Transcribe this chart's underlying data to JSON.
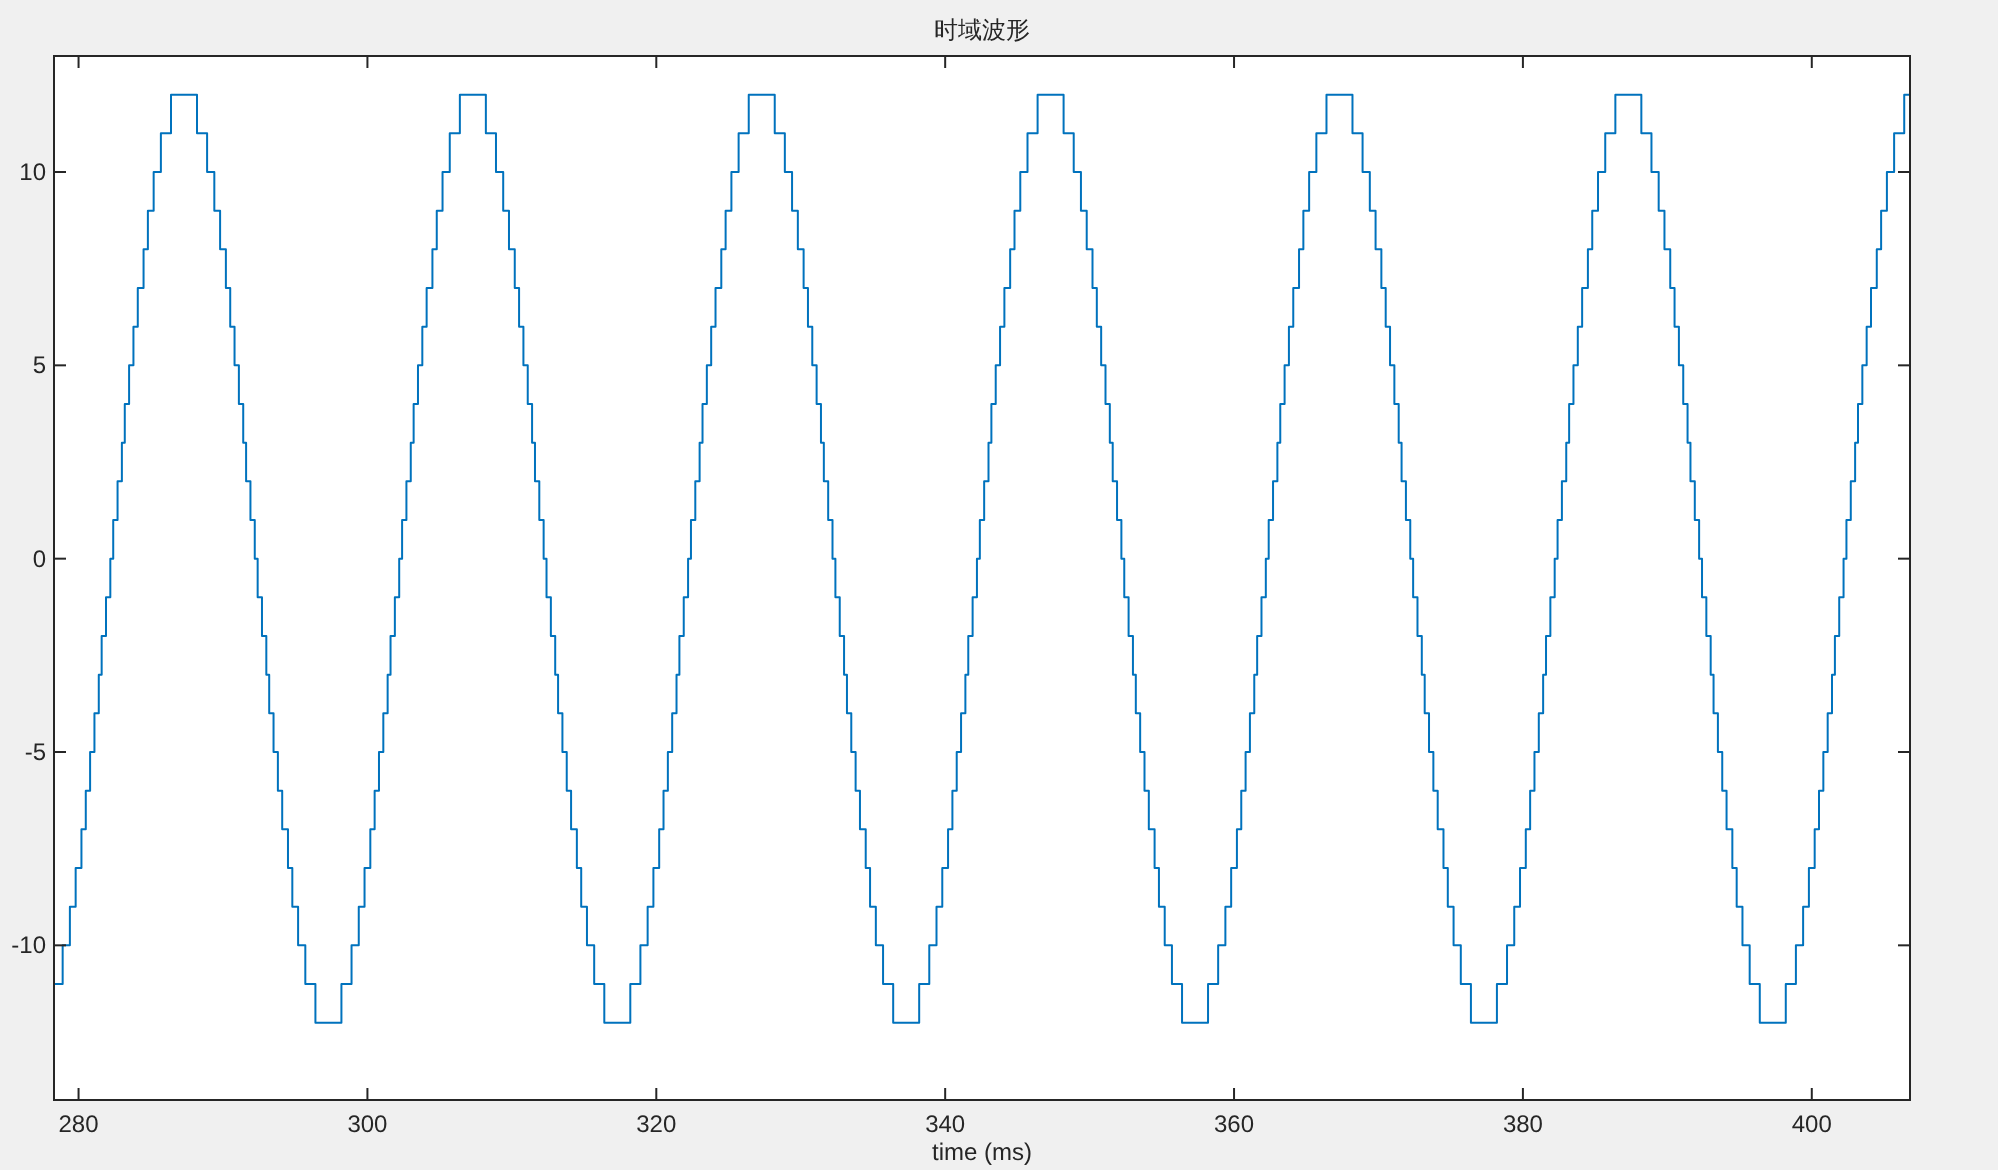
{
  "chart_data": {
    "type": "step",
    "title": "时域波形",
    "xlabel": "time (ms)",
    "xlim": [
      278.3,
      406.8
    ],
    "xticks": [
      280,
      300,
      320,
      340,
      360,
      380,
      400
    ],
    "ylim": [
      -14,
      13
    ],
    "yticks": [
      -10,
      -5,
      0,
      5,
      10
    ],
    "grid": false,
    "line_style": "solid",
    "marker": "none",
    "series": [
      {
        "color": "#0072bd",
        "x": [
          278.3,
          278.9,
          279.4,
          279.8,
          280.2,
          280.5,
          280.8,
          281.1,
          281.4,
          281.6,
          281.9,
          282.2,
          282.4,
          282.7,
          283.0,
          283.2,
          283.5,
          283.8,
          284.1,
          284.5,
          284.8,
          285.2,
          285.7,
          286.4,
          288.2,
          288.9,
          289.4,
          289.8,
          290.2,
          290.5,
          290.8,
          291.1,
          291.4,
          291.6,
          291.9,
          292.2,
          292.4,
          292.7,
          293.0,
          293.2,
          293.5,
          293.8,
          294.1,
          294.5,
          294.8,
          295.2,
          295.7,
          296.4,
          298.2,
          298.9,
          299.4,
          299.8,
          300.2,
          300.5,
          300.8,
          301.1,
          301.4,
          301.6,
          301.9,
          302.2,
          302.4,
          302.7,
          303.0,
          303.2,
          303.5,
          303.8,
          304.1,
          304.5,
          304.8,
          305.2,
          305.7,
          306.4,
          308.2,
          308.9,
          309.4,
          309.8,
          310.2,
          310.5,
          310.8,
          311.1,
          311.4,
          311.6,
          311.9,
          312.2,
          312.4,
          312.7,
          313.0,
          313.2,
          313.5,
          313.8,
          314.1,
          314.5,
          314.8,
          315.2,
          315.7,
          316.4,
          318.2,
          318.9,
          319.4,
          319.8,
          320.2,
          320.5,
          320.8,
          321.1,
          321.4,
          321.6,
          321.9,
          322.2,
          322.4,
          322.7,
          323.0,
          323.2,
          323.5,
          323.8,
          324.1,
          324.5,
          324.8,
          325.2,
          325.7,
          326.4,
          328.2,
          328.9,
          329.4,
          329.8,
          330.2,
          330.5,
          330.8,
          331.1,
          331.4,
          331.6,
          331.9,
          332.2,
          332.4,
          332.7,
          333.0,
          333.2,
          333.5,
          333.8,
          334.1,
          334.5,
          334.8,
          335.2,
          335.7,
          336.4,
          338.2,
          338.9,
          339.4,
          339.8,
          340.2,
          340.5,
          340.8,
          341.1,
          341.4,
          341.6,
          341.9,
          342.2,
          342.4,
          342.7,
          343.0,
          343.2,
          343.5,
          343.8,
          344.1,
          344.5,
          344.8,
          345.2,
          345.7,
          346.4,
          348.2,
          348.9,
          349.4,
          349.8,
          350.2,
          350.5,
          350.8,
          351.1,
          351.4,
          351.6,
          351.9,
          352.2,
          352.4,
          352.7,
          353.0,
          353.2,
          353.5,
          353.8,
          354.1,
          354.5,
          354.8,
          355.2,
          355.7,
          356.4,
          358.2,
          358.9,
          359.4,
          359.8,
          360.2,
          360.5,
          360.8,
          361.1,
          361.4,
          361.6,
          361.9,
          362.2,
          362.4,
          362.7,
          363.0,
          363.2,
          363.5,
          363.8,
          364.1,
          364.5,
          364.8,
          365.2,
          365.7,
          366.4,
          368.2,
          368.9,
          369.4,
          369.8,
          370.2,
          370.5,
          370.8,
          371.1,
          371.4,
          371.6,
          371.9,
          372.2,
          372.4,
          372.7,
          373.0,
          373.2,
          373.5,
          373.8,
          374.1,
          374.5,
          374.8,
          375.2,
          375.7,
          376.4,
          378.2,
          378.9,
          379.4,
          379.8,
          380.2,
          380.5,
          380.8,
          381.1,
          381.4,
          381.6,
          381.9,
          382.2,
          382.4,
          382.7,
          383.0,
          383.2,
          383.5,
          383.8,
          384.1,
          384.5,
          384.8,
          385.2,
          385.7,
          386.4,
          388.2,
          388.9,
          389.4,
          389.8,
          390.2,
          390.5,
          390.8,
          391.1,
          391.4,
          391.6,
          391.9,
          392.2,
          392.4,
          392.7,
          393.0,
          393.2,
          393.5,
          393.8,
          394.1,
          394.5,
          394.8,
          395.2,
          395.7,
          396.4,
          398.2,
          398.9,
          399.4,
          399.8,
          400.2,
          400.5,
          400.8,
          401.1,
          401.4,
          401.6,
          401.9,
          402.2,
          402.4,
          402.7,
          403.0,
          403.2,
          403.5,
          403.8,
          404.1,
          404.5,
          404.8,
          405.2,
          405.7,
          406.4,
          406.8
        ],
        "values": [
          -11,
          -10,
          -9,
          -8,
          -7,
          -6,
          -5,
          -4,
          -3,
          -2,
          -1,
          0,
          1,
          2,
          3,
          4,
          5,
          6,
          7,
          8,
          9,
          10,
          11,
          12,
          11,
          10,
          9,
          8,
          7,
          6,
          5,
          4,
          3,
          2,
          1,
          0,
          -1,
          -2,
          -3,
          -4,
          -5,
          -6,
          -7,
          -8,
          -9,
          -10,
          -11,
          -12,
          -11,
          -10,
          -9,
          -8,
          -7,
          -6,
          -5,
          -4,
          -3,
          -2,
          -1,
          0,
          1,
          2,
          3,
          4,
          5,
          6,
          7,
          8,
          9,
          10,
          11,
          12,
          11,
          10,
          9,
          8,
          7,
          6,
          5,
          4,
          3,
          2,
          1,
          0,
          -1,
          -2,
          -3,
          -4,
          -5,
          -6,
          -7,
          -8,
          -9,
          -10,
          -11,
          -12,
          -11,
          -10,
          -9,
          -8,
          -7,
          -6,
          -5,
          -4,
          -3,
          -2,
          -1,
          0,
          1,
          2,
          3,
          4,
          5,
          6,
          7,
          8,
          9,
          10,
          11,
          12,
          11,
          10,
          9,
          8,
          7,
          6,
          5,
          4,
          3,
          2,
          1,
          0,
          -1,
          -2,
          -3,
          -4,
          -5,
          -6,
          -7,
          -8,
          -9,
          -10,
          -11,
          -12,
          -11,
          -10,
          -9,
          -8,
          -7,
          -6,
          -5,
          -4,
          -3,
          -2,
          -1,
          0,
          1,
          2,
          3,
          4,
          5,
          6,
          7,
          8,
          9,
          10,
          11,
          12,
          11,
          10,
          9,
          8,
          7,
          6,
          5,
          4,
          3,
          2,
          1,
          0,
          -1,
          -2,
          -3,
          -4,
          -5,
          -6,
          -7,
          -8,
          -9,
          -10,
          -11,
          -12,
          -11,
          -10,
          -9,
          -8,
          -7,
          -6,
          -5,
          -4,
          -3,
          -2,
          -1,
          0,
          1,
          2,
          3,
          4,
          5,
          6,
          7,
          8,
          9,
          10,
          11,
          12,
          11,
          10,
          9,
          8,
          7,
          6,
          5,
          4,
          3,
          2,
          1,
          0,
          -1,
          -2,
          -3,
          -4,
          -5,
          -6,
          -7,
          -8,
          -9,
          -10,
          -11,
          -12,
          -11,
          -10,
          -9,
          -8,
          -7,
          -6,
          -5,
          -4,
          -3,
          -2,
          -1,
          0,
          1,
          2,
          3,
          4,
          5,
          6,
          7,
          8,
          9,
          10,
          11,
          12,
          11,
          10,
          9,
          8,
          7,
          6,
          5,
          4,
          3,
          2,
          1,
          0,
          -1,
          -2,
          -3,
          -4,
          -5,
          -6,
          -7,
          -8,
          -9,
          -10,
          -11,
          -12,
          -11,
          -10,
          -9,
          -8,
          -7,
          -6,
          -5,
          -4,
          -3,
          -2,
          -1,
          0,
          1,
          2,
          3,
          4,
          5,
          6,
          7,
          8,
          9,
          10,
          11,
          12,
          12
        ]
      }
    ]
  }
}
